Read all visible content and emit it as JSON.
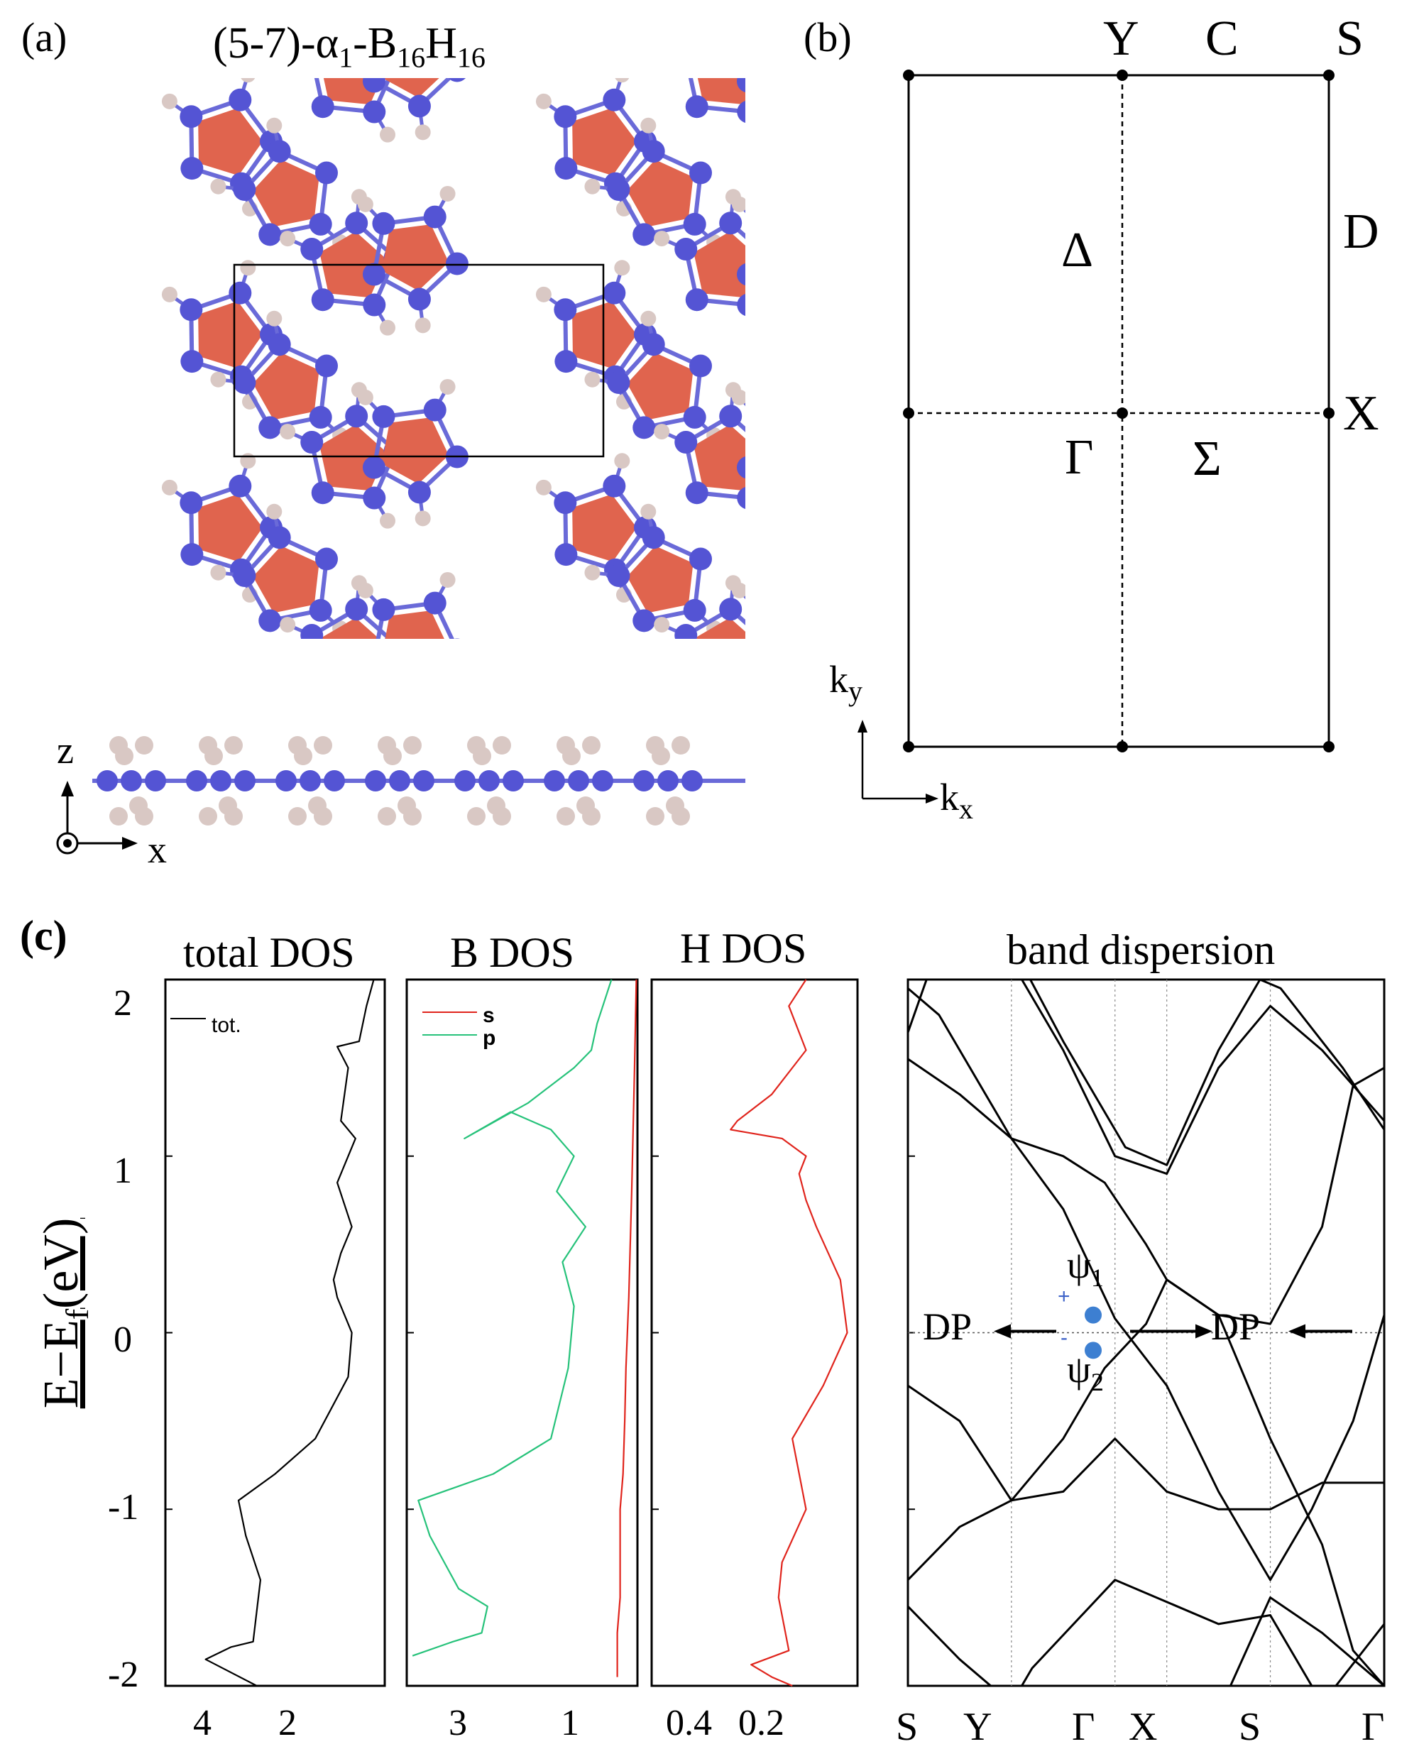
{
  "panel_a": {
    "label": "(a)",
    "title": "(5-7)-α₁-B₁₆H₁₆",
    "title_parts": {
      "pre": "(5-7)-α",
      "sub1": "1",
      "mid": "-B",
      "sub2": "16",
      "mid2": "H",
      "sub3": "16"
    },
    "axis_z": "z",
    "axis_x": "x",
    "colors": {
      "boron": "#5454d4",
      "hydrogen": "#d9c8c4",
      "pentagon": "#e0644e",
      "bond": "#6a6ad8"
    }
  },
  "panel_b": {
    "label": "(b)",
    "points": {
      "Y": "Y",
      "C": "C",
      "S": "S",
      "D": "D",
      "Delta": "Δ",
      "X": "X",
      "Gamma": "Γ",
      "Sigma": "Σ"
    },
    "ky": "k",
    "ky_sub": "y",
    "kx": "k",
    "kx_sub": "x"
  },
  "panel_c": {
    "label": "(c)",
    "ylabel": "E−E",
    "ylabel_sub": "f",
    "ylabel_tail": "(eV)",
    "titles": {
      "total": "total DOS",
      "b": "B DOS",
      "h": "H DOS",
      "band": "band dispersion"
    },
    "yticks": [
      "2",
      "1",
      "0",
      "-1",
      "-2"
    ],
    "total_xticks": [
      "4",
      "2"
    ],
    "b_xticks": [
      "3",
      "1"
    ],
    "h_xticks": [
      "0.4",
      "0.2"
    ],
    "band_xticks": [
      "S",
      "Y",
      "Γ",
      "X",
      "S",
      "Γ"
    ],
    "legend_total": "tot.",
    "legend_s": "s",
    "legend_p": "p",
    "dp_label": "DP",
    "psi1": "ψ",
    "psi1_sub": "1",
    "psi2": "ψ",
    "psi2_sub": "2",
    "plus": "+",
    "minus": "-",
    "colors": {
      "total": "#000000",
      "s": "#e0241c",
      "p": "#26c27a",
      "h": "#e0241c",
      "psi": "#3d7fd1"
    }
  },
  "chart_data": [
    {
      "type": "line",
      "title": "total DOS",
      "ylabel": "E−Ef(eV)",
      "ylim": [
        -2,
        2
      ],
      "xlim": [
        6,
        0
      ],
      "series": [
        {
          "name": "tot.",
          "x": [
            3.5,
            4.9,
            4.2,
            3.6,
            3.4,
            3.8,
            4.0,
            3.0,
            1.9,
            1.0,
            0.9,
            1.0,
            1.3,
            1.4,
            1.2,
            0.9,
            1.3,
            1.0,
            0.8,
            1.2,
            1.0,
            1.3,
            0.7,
            0.5,
            0.3
          ],
          "y": [
            -2.0,
            -1.85,
            -1.78,
            -1.75,
            -1.4,
            -1.15,
            -0.95,
            -0.8,
            -0.6,
            -0.25,
            0.0,
            0.05,
            0.2,
            0.3,
            0.45,
            0.6,
            0.85,
            1.0,
            1.1,
            1.2,
            1.5,
            1.62,
            1.65,
            1.85,
            2.0
          ]
        }
      ]
    },
    {
      "type": "line",
      "title": "B DOS",
      "ylim": [
        -2,
        2
      ],
      "xlim": [
        4,
        0
      ],
      "series": [
        {
          "name": "s",
          "x": [
            0.35,
            0.35,
            0.3,
            0.3,
            0.25,
            0.22,
            0.2,
            0.15,
            0.1,
            0.05,
            0.02
          ],
          "y": [
            -1.95,
            -1.7,
            -1.5,
            -1.0,
            -0.8,
            -0.5,
            -0.2,
            0.2,
            0.8,
            1.5,
            2.0
          ]
        },
        {
          "name": "p",
          "x": [
            3.9,
            3.2,
            2.7,
            2.6,
            3.1,
            3.6,
            3.8,
            2.5,
            1.5,
            1.2,
            1.1,
            1.3,
            0.9,
            1.4,
            1.1,
            1.5,
            2.2,
            3.0,
            1.9,
            1.1,
            0.8,
            0.7,
            0.45
          ],
          "y": [
            -1.83,
            -1.75,
            -1.7,
            -1.55,
            -1.45,
            -1.15,
            -0.95,
            -0.8,
            -0.6,
            -0.2,
            0.15,
            0.4,
            0.6,
            0.8,
            1.0,
            1.15,
            1.25,
            1.1,
            1.3,
            1.5,
            1.6,
            1.75,
            2.0
          ]
        }
      ]
    },
    {
      "type": "line",
      "title": "H DOS",
      "ylim": [
        -2,
        2
      ],
      "xlim": [
        0.6,
        0
      ],
      "series": [
        {
          "name": "H",
          "x": [
            0.19,
            0.25,
            0.31,
            0.2,
            0.23,
            0.22,
            0.15,
            0.19,
            0.1,
            0.03,
            0.05,
            0.12,
            0.15,
            0.17,
            0.15,
            0.22,
            0.37,
            0.35,
            0.25,
            0.15,
            0.2,
            0.15
          ],
          "y": [
            -2.0,
            -1.95,
            -1.88,
            -1.8,
            -1.5,
            -1.3,
            -1.0,
            -0.6,
            -0.3,
            0.0,
            0.3,
            0.6,
            0.75,
            0.9,
            1.0,
            1.1,
            1.15,
            1.2,
            1.35,
            1.6,
            1.85,
            2.0
          ]
        }
      ]
    },
    {
      "type": "line",
      "title": "band dispersion",
      "ylim": [
        -2,
        2
      ],
      "categories": [
        "S",
        "Y",
        "Γ",
        "X",
        "S",
        "Γ"
      ],
      "x": [
        0,
        1,
        2,
        2.5,
        3.5,
        4.6
      ],
      "annotations": [
        "DP",
        "DP",
        "ψ1",
        "ψ2"
      ],
      "series": [
        {
          "name": "b1",
          "x": [
            0,
            0.5,
            1,
            1.5,
            1.9,
            2.3,
            2.5,
            3.0,
            3.5,
            4.0,
            4.3,
            4.6
          ],
          "y": [
            1.55,
            1.35,
            1.1,
            1.0,
            0.85,
            0.5,
            0.3,
            0.1,
            0.05,
            0.6,
            1.4,
            1.5
          ]
        },
        {
          "name": "b2",
          "x": [
            0,
            0.5,
            1,
            1.5,
            1.9,
            2.3,
            2.5,
            3.0,
            3.5,
            4.0,
            4.3,
            4.6
          ],
          "y": [
            -1.4,
            -1.1,
            -0.95,
            -0.6,
            -0.2,
            0.05,
            0.3,
            0.1,
            -0.6,
            -1.2,
            -1.8,
            -2.0
          ]
        }
      ]
    }
  ]
}
